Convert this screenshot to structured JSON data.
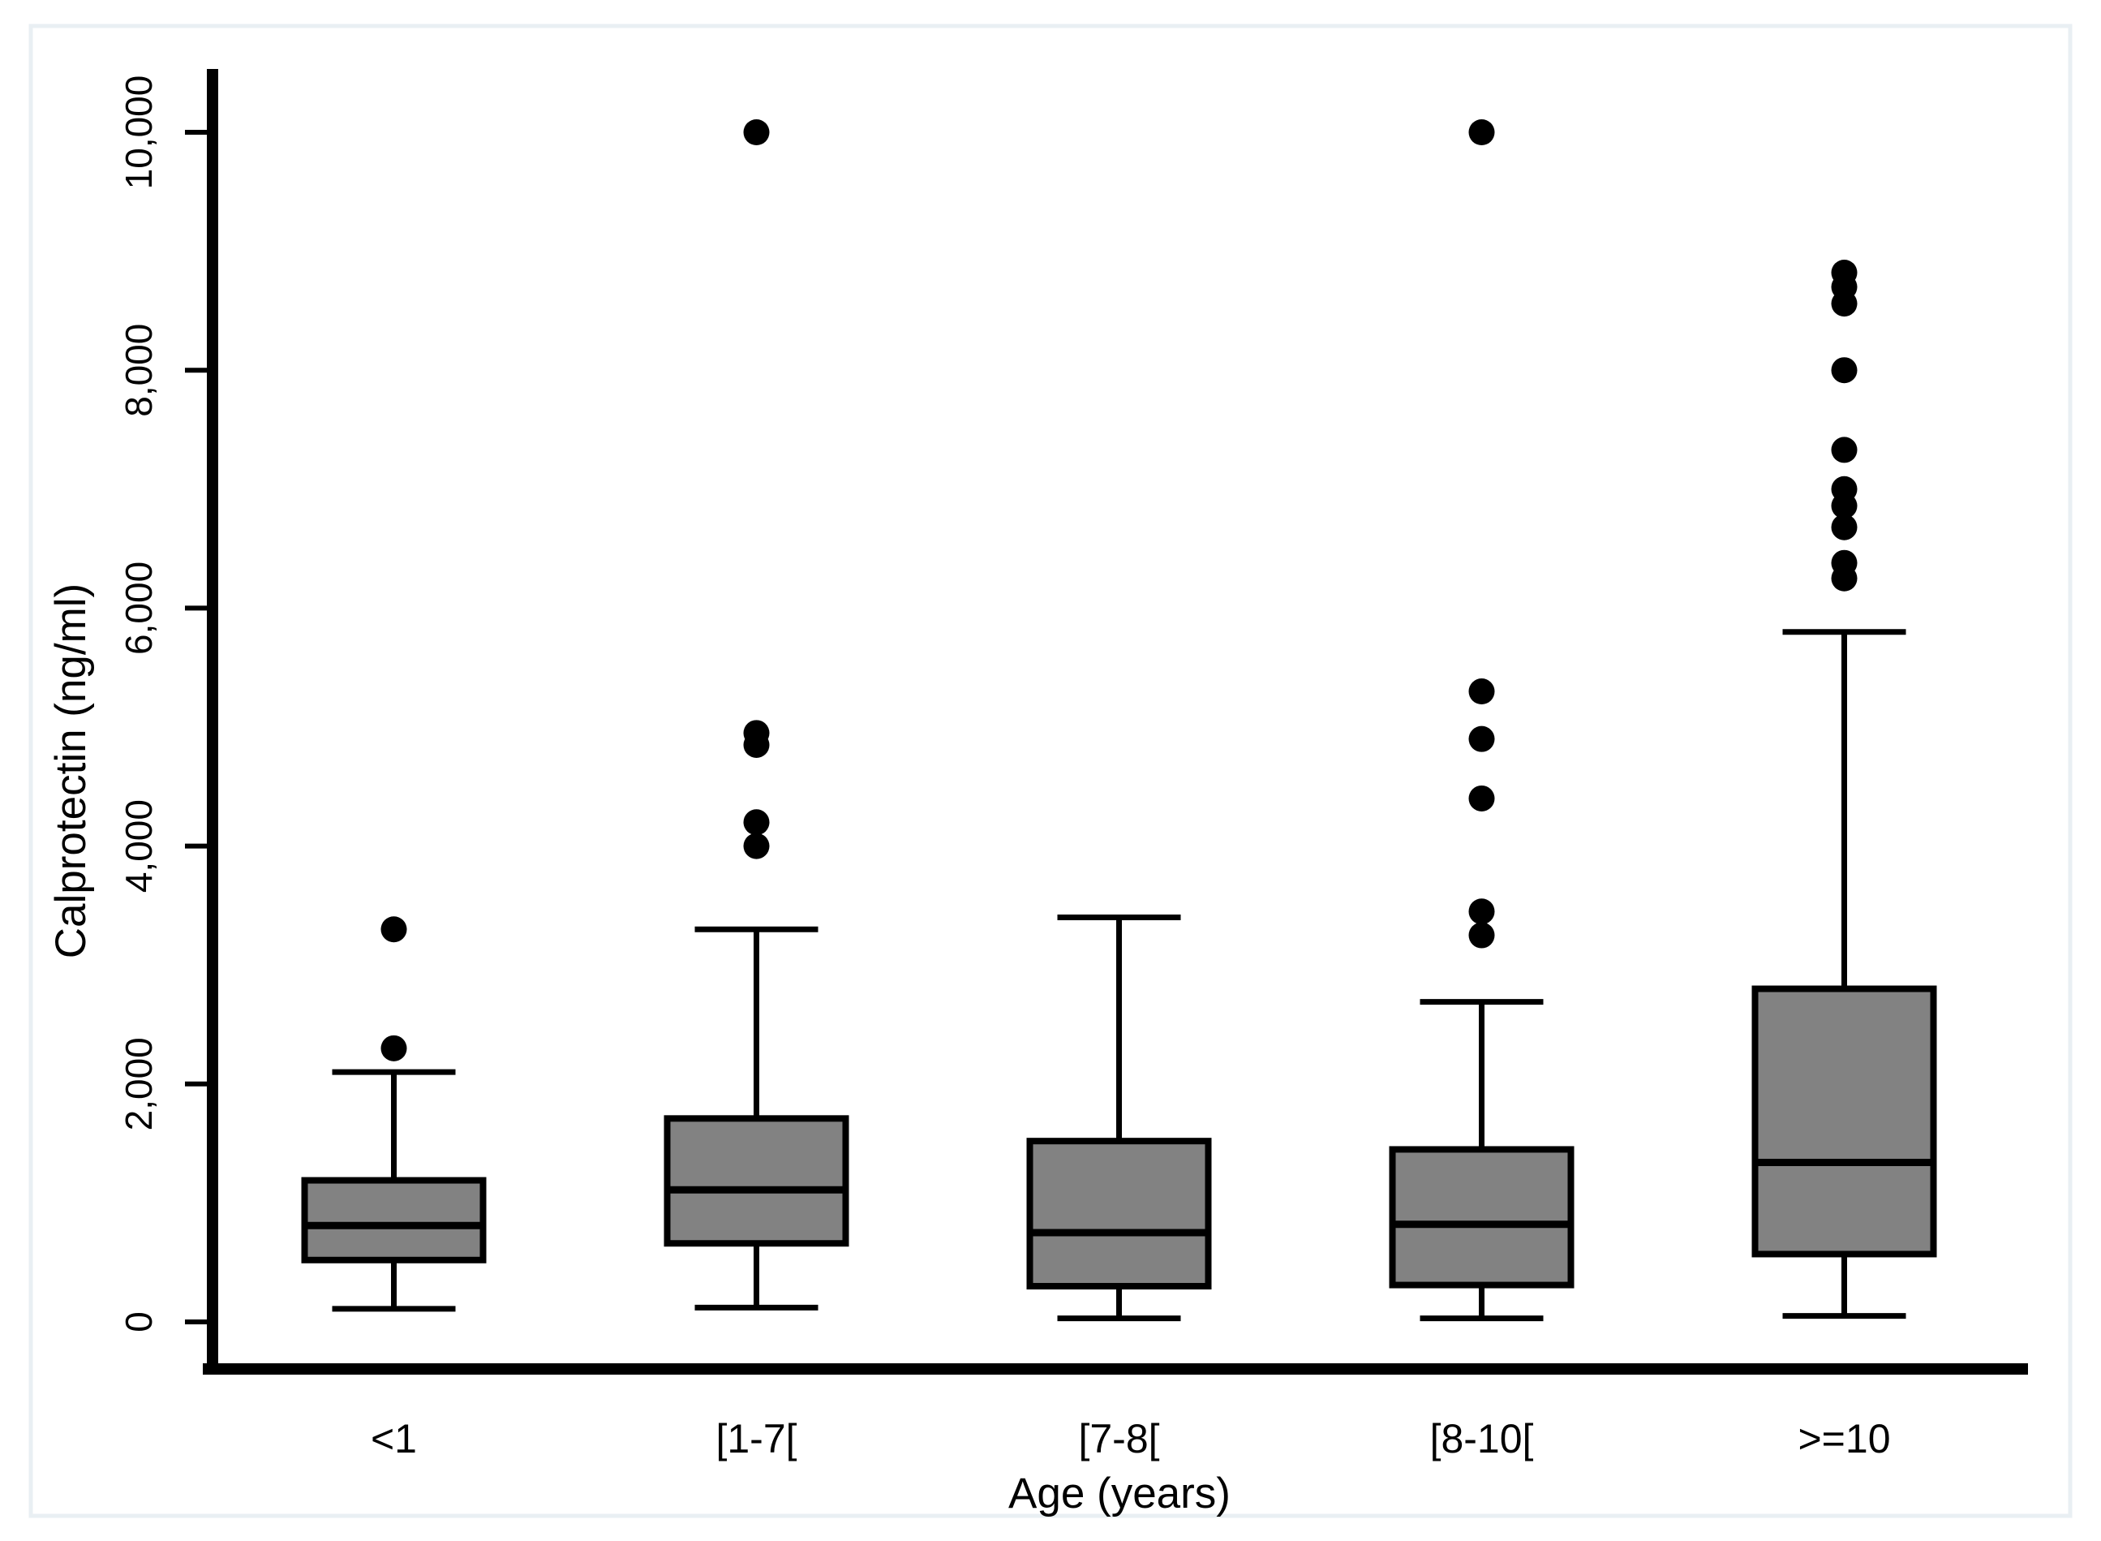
{
  "figure": {
    "frame_color": "#e9eff3",
    "background": "#ffffff"
  },
  "chart_data": {
    "type": "box",
    "title": "",
    "xlabel": "Age (years)",
    "ylabel": "Calprotectin (ng/ml)",
    "ylim": [
      0,
      10000
    ],
    "yticks": [
      0,
      2000,
      4000,
      6000,
      8000,
      10000
    ],
    "ytick_labels": [
      "0",
      "2,000",
      "4,000",
      "6,000",
      "8,000",
      "10,000"
    ],
    "grid": "off",
    "legend": "none",
    "categories": [
      "<1",
      "[1-7[",
      "[7-8[",
      "[8-10[",
      ">=10"
    ],
    "series": [
      {
        "category": "<1",
        "min": 110,
        "q1": 520,
        "median": 810,
        "q3": 1190,
        "max": 2100,
        "outliers": [
          2300,
          3300
        ]
      },
      {
        "category": "[1-7[",
        "min": 120,
        "q1": 660,
        "median": 1110,
        "q3": 1710,
        "max": 3300,
        "outliers": [
          4000,
          4200,
          4850,
          4950,
          10000
        ]
      },
      {
        "category": "[7-8[",
        "min": 30,
        "q1": 300,
        "median": 750,
        "q3": 1520,
        "max": 3400,
        "outliers": []
      },
      {
        "category": "[8-10[",
        "min": 30,
        "q1": 310,
        "median": 820,
        "q3": 1450,
        "max": 2690,
        "outliers": [
          3250,
          3450,
          4400,
          4900,
          5300,
          10000
        ]
      },
      {
        "category": ">=10",
        "min": 50,
        "q1": 570,
        "median": 1340,
        "q3": 2800,
        "max": 5800,
        "outliers": [
          6250,
          6380,
          6680,
          6860,
          7000,
          7330,
          8000,
          8560,
          8700,
          8820
        ]
      }
    ],
    "colors": {
      "box_fill": "#828282",
      "line": "#000000"
    }
  }
}
